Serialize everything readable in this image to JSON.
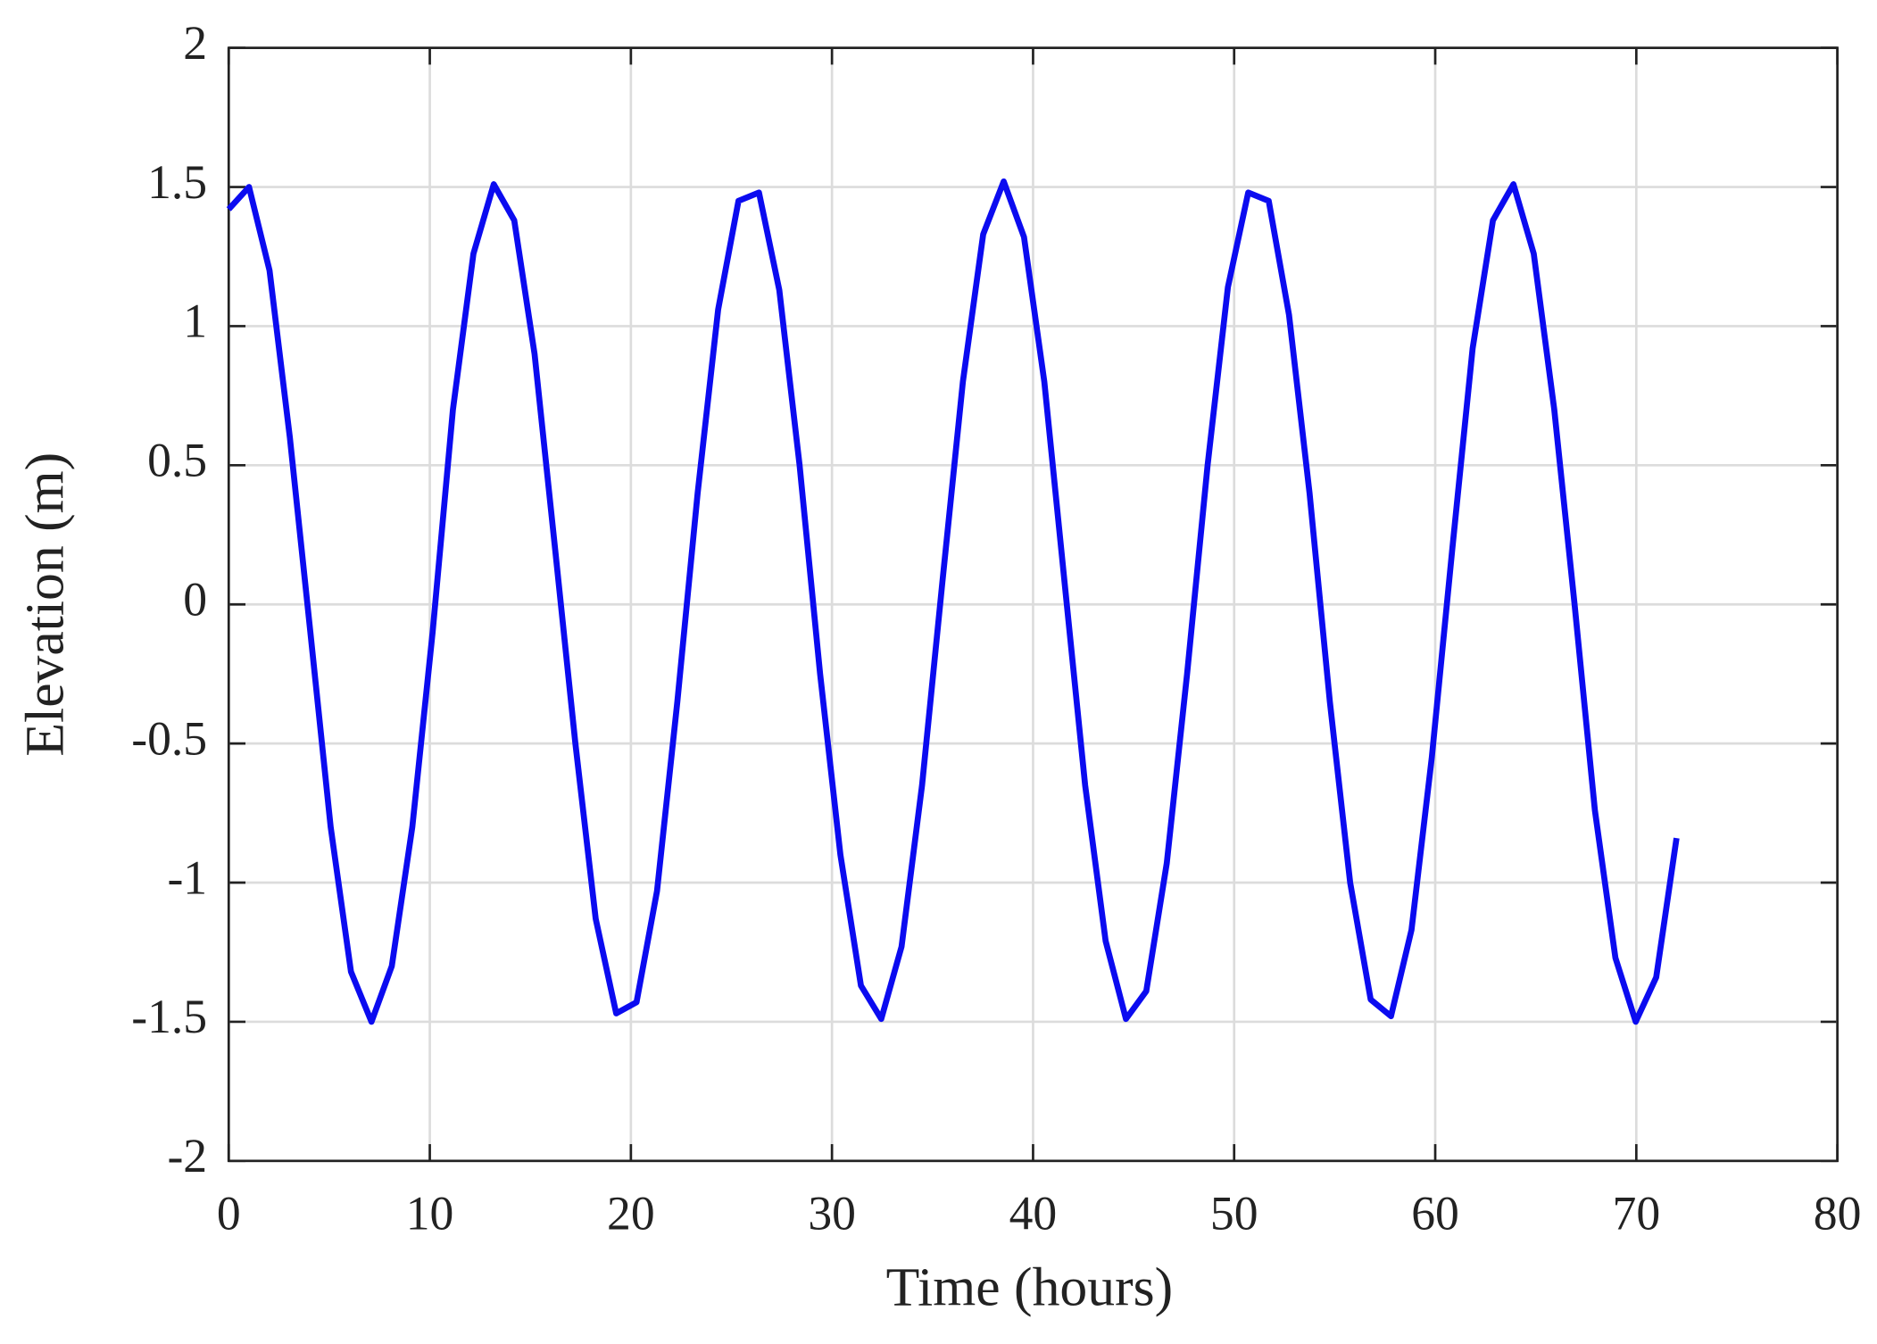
{
  "chart_data": {
    "type": "line",
    "xlabel": "Time (hours)",
    "ylabel": "Elevation (m)",
    "x": [
      0,
      1.01,
      2.03,
      3.04,
      4.06,
      5.07,
      6.08,
      7.1,
      8.11,
      9.13,
      10.14,
      11.15,
      12.17,
      13.18,
      14.2,
      15.21,
      16.23,
      17.24,
      18.25,
      19.27,
      20.28,
      21.3,
      22.31,
      23.32,
      24.34,
      25.35,
      26.37,
      27.38,
      28.39,
      29.41,
      30.42,
      31.44,
      32.45,
      33.46,
      34.48,
      35.49,
      36.51,
      37.52,
      38.54,
      39.55,
      40.56,
      41.58,
      42.59,
      43.61,
      44.62,
      45.63,
      46.65,
      47.66,
      48.68,
      49.69,
      50.7,
      51.72,
      52.73,
      53.75,
      54.76,
      55.77,
      56.79,
      57.8,
      58.82,
      59.83,
      60.85,
      61.86,
      62.87,
      63.89,
      64.9,
      65.92,
      66.93,
      67.94,
      68.96,
      69.97,
      70.99,
      72
    ],
    "series": [
      {
        "color": "#0b0bf0",
        "values": [
          1.42,
          1.5,
          1.2,
          0.6,
          -0.1,
          -0.8,
          -1.32,
          -1.5,
          -1.3,
          -0.8,
          -0.1,
          0.7,
          1.26,
          1.51,
          1.38,
          0.9,
          0.2,
          -0.5,
          -1.13,
          -1.47,
          -1.43,
          -1.03,
          -0.35,
          0.4,
          1.06,
          1.45,
          1.48,
          1.13,
          0.5,
          -0.25,
          -0.9,
          -1.37,
          -1.49,
          -1.23,
          -0.65,
          0.08,
          0.8,
          1.33,
          1.52,
          1.32,
          0.8,
          0.07,
          -0.65,
          -1.21,
          -1.49,
          -1.39,
          -0.93,
          -0.25,
          0.5,
          1.14,
          1.48,
          1.45,
          1.04,
          0.4,
          -0.35,
          -1.0,
          -1.42,
          -1.48,
          -1.17,
          -0.55,
          0.2,
          0.92,
          1.38,
          1.51,
          1.26,
          0.7,
          0.0,
          -0.74,
          -1.27,
          -1.5,
          -1.34,
          -0.84
        ]
      }
    ],
    "xlim": [
      0,
      80
    ],
    "xticks": [
      0,
      10,
      20,
      30,
      40,
      50,
      60,
      70,
      80
    ],
    "ylim": [
      -2,
      2
    ],
    "yticks": [
      -2,
      -1.5,
      -1,
      -0.5,
      0,
      0.5,
      1,
      1.5,
      2
    ],
    "grid": true
  }
}
